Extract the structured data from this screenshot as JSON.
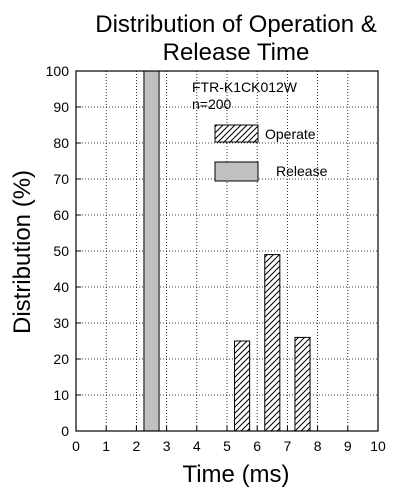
{
  "chart_data": {
    "type": "bar",
    "title_lines": [
      "Distribution of Operation &",
      "Release Time"
    ],
    "xlabel": "Time (ms)",
    "ylabel": "Distribution (%)",
    "xlim": [
      0,
      10
    ],
    "ylim": [
      0,
      100
    ],
    "x_ticks": [
      "0",
      "1",
      "2",
      "3",
      "4",
      "5",
      "6",
      "7",
      "8",
      "9",
      "10"
    ],
    "y_ticks": [
      "0",
      "10",
      "20",
      "30",
      "40",
      "50",
      "60",
      "70",
      "80",
      "90",
      "100"
    ],
    "grid": true,
    "bin_width": 0.5,
    "annotations": [
      "FTR-K1CK012W",
      "n=200"
    ],
    "legend": [
      "Operate",
      "Release"
    ],
    "legend_position": "top-right",
    "series": [
      {
        "name": "Operate",
        "style": "hatched",
        "bins": [
          {
            "x0": 5.25,
            "x1": 5.75,
            "value": 25
          },
          {
            "x0": 6.25,
            "x1": 6.75,
            "value": 49
          },
          {
            "x0": 7.25,
            "x1": 7.75,
            "value": 26
          }
        ]
      },
      {
        "name": "Release",
        "style": "filled",
        "color": "#c0c0c0",
        "bins": [
          {
            "x0": 2.25,
            "x1": 2.75,
            "value": 100
          }
        ]
      }
    ]
  }
}
